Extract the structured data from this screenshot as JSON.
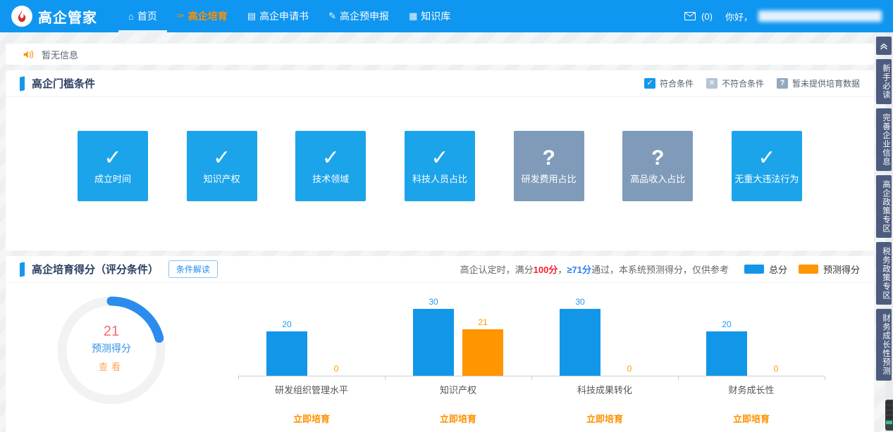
{
  "navbar": {
    "brand": "高企管家",
    "brand_logo": "flame-logo-icon",
    "items": [
      {
        "id": "home",
        "label": "首页",
        "icon": "home-icon",
        "active": true,
        "highlighted": false
      },
      {
        "id": "cultivate",
        "label": "高企培育",
        "icon": "cultivate-icon",
        "active": false,
        "highlighted": true
      },
      {
        "id": "application",
        "label": "高企申请书",
        "icon": "application-doc-icon",
        "active": false,
        "highlighted": false
      },
      {
        "id": "pre-declare",
        "label": "高企预申报",
        "icon": "edit-icon",
        "active": false,
        "highlighted": false
      },
      {
        "id": "knowledge",
        "label": "知识库",
        "icon": "book-icon",
        "active": false,
        "highlighted": false
      }
    ],
    "message_icon": "envelope-icon",
    "message_count": "(0)",
    "greeting": "你好，"
  },
  "notice": {
    "icon": "speaker-icon",
    "text": "暂无信息"
  },
  "threshold_section": {
    "title": "高企门槛条件",
    "legend": [
      {
        "label": "符合条件",
        "type": "check",
        "icon": "check-icon"
      },
      {
        "label": "不符合条件",
        "type": "cross",
        "icon": "cross-icon"
      },
      {
        "label": "暂未提供培育数据",
        "type": "question",
        "icon": "question-icon"
      }
    ],
    "tiles": [
      {
        "label": "成立时间",
        "status": "check"
      },
      {
        "label": "知识产权",
        "status": "check"
      },
      {
        "label": "技术领域",
        "status": "check"
      },
      {
        "label": "科技人员占比",
        "status": "check"
      },
      {
        "label": "研发费用占比",
        "status": "question"
      },
      {
        "label": "高品收入占比",
        "status": "question"
      },
      {
        "label": "无重大违法行为",
        "status": "check"
      }
    ]
  },
  "score_section": {
    "title": "高企培育得分（评分条件）",
    "interpret_button": "条件解读",
    "note_parts": [
      {
        "text": "高企认定时，满分",
        "style": "normal"
      },
      {
        "text": "100分",
        "style": "red"
      },
      {
        "text": "，",
        "style": "normal"
      },
      {
        "text": "≥71分",
        "style": "blue"
      },
      {
        "text": "通过，本系统预测得分，仅供参考",
        "style": "normal"
      }
    ],
    "legend": [
      {
        "label": "总分",
        "color": "#1296e8"
      },
      {
        "label": "预测得分",
        "color": "#ff9500"
      }
    ],
    "donut_value": "21",
    "donut_label": "预测得分",
    "donut_action": "查看",
    "cultivate_link": "立即培育"
  },
  "chart_data": {
    "type": "bar",
    "title": "高企培育得分（评分条件）",
    "categories": [
      "研发组织管理水平",
      "知识产权",
      "科技成果转化",
      "财务成长性"
    ],
    "series": [
      {
        "name": "总分",
        "color": "#1296e8",
        "values": [
          20,
          30,
          30,
          20
        ]
      },
      {
        "name": "预测得分",
        "color": "#ff9500",
        "values": [
          0,
          21,
          0,
          0
        ]
      }
    ],
    "ylim": [
      0,
      30
    ],
    "grid": false,
    "legend_position": "top-right",
    "donut": {
      "type": "donut",
      "label": "预测得分",
      "value": 21,
      "max": 100
    }
  },
  "sidebar": {
    "collapse_icon": "double-chevron-up-icon",
    "items": [
      {
        "id": "newbie-guide",
        "label": "新手必读"
      },
      {
        "id": "company-info",
        "label": "完善企业信息"
      },
      {
        "id": "policy-zone",
        "label": "高企政策专区"
      },
      {
        "id": "tax-policy-zone",
        "label": "税务政策专区"
      },
      {
        "id": "finance-forecast",
        "label": "财务成长性预测"
      }
    ]
  }
}
